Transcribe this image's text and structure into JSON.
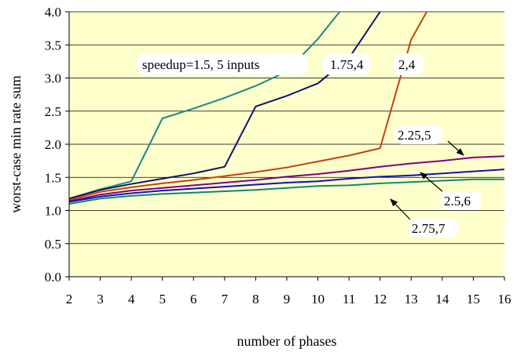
{
  "chart_data": {
    "type": "line",
    "title": "",
    "xlabel": "number of phases",
    "ylabel": "worst-case min rate sum",
    "xlim": [
      2,
      16
    ],
    "ylim": [
      0,
      4
    ],
    "x_ticks": [
      "2",
      "3",
      "4",
      "5",
      "6",
      "7",
      "8",
      "9",
      "10",
      "11",
      "12",
      "13",
      "14",
      "15",
      "16"
    ],
    "y_ticks": [
      "0.0",
      "0.5",
      "1.0",
      "1.5",
      "2.0",
      "2.5",
      "3.0",
      "3.5",
      "4.0"
    ],
    "grid": "horizontal",
    "plot_background": "#FFFFCC",
    "series": [
      {
        "name": "speedup=1.5, 5 inputs",
        "color": "#1A8A80",
        "points": [
          [
            2,
            1.18
          ],
          [
            3,
            1.32
          ],
          [
            4,
            1.44
          ],
          [
            5,
            2.39
          ],
          [
            6,
            2.54
          ],
          [
            7,
            2.7
          ],
          [
            8,
            2.88
          ],
          [
            9,
            3.1
          ],
          [
            10,
            3.59
          ],
          [
            10.7,
            4.0
          ]
        ]
      },
      {
        "name": "1.75,4",
        "color": "#101070",
        "points": [
          [
            2,
            1.18
          ],
          [
            3,
            1.31
          ],
          [
            4,
            1.4
          ],
          [
            5,
            1.48
          ],
          [
            6,
            1.56
          ],
          [
            7,
            1.66
          ],
          [
            8,
            2.57
          ],
          [
            9,
            2.73
          ],
          [
            10,
            2.92
          ],
          [
            11,
            3.3
          ],
          [
            12,
            4.0
          ]
        ]
      },
      {
        "name": "2,4",
        "color": "#C84010",
        "points": [
          [
            2,
            1.16
          ],
          [
            3,
            1.28
          ],
          [
            4,
            1.35
          ],
          [
            5,
            1.41
          ],
          [
            6,
            1.46
          ],
          [
            7,
            1.52
          ],
          [
            8,
            1.58
          ],
          [
            9,
            1.65
          ],
          [
            10,
            1.74
          ],
          [
            11,
            1.83
          ],
          [
            12,
            1.94
          ],
          [
            13,
            3.58
          ],
          [
            13.5,
            4.0
          ]
        ]
      },
      {
        "name": "2.25,5",
        "color": "#800080",
        "points": [
          [
            2,
            1.14
          ],
          [
            3,
            1.24
          ],
          [
            4,
            1.3
          ],
          [
            5,
            1.34
          ],
          [
            6,
            1.38
          ],
          [
            7,
            1.42
          ],
          [
            8,
            1.46
          ],
          [
            9,
            1.51
          ],
          [
            10,
            1.55
          ],
          [
            11,
            1.6
          ],
          [
            12,
            1.66
          ],
          [
            13,
            1.71
          ],
          [
            14,
            1.75
          ],
          [
            15,
            1.8
          ],
          [
            16,
            1.82
          ]
        ]
      },
      {
        "name": "2.5,6",
        "color": "#1010C0",
        "points": [
          [
            2,
            1.13
          ],
          [
            3,
            1.21
          ],
          [
            4,
            1.26
          ],
          [
            5,
            1.3
          ],
          [
            6,
            1.33
          ],
          [
            7,
            1.36
          ],
          [
            8,
            1.39
          ],
          [
            9,
            1.42
          ],
          [
            10,
            1.44
          ],
          [
            11,
            1.48
          ],
          [
            12,
            1.51
          ],
          [
            13,
            1.53
          ],
          [
            14,
            1.56
          ],
          [
            15,
            1.59
          ],
          [
            16,
            1.62
          ]
        ]
      },
      {
        "name": "2.75,7",
        "color": "#0E8A70",
        "points": [
          [
            2,
            1.1
          ],
          [
            3,
            1.18
          ],
          [
            4,
            1.22
          ],
          [
            5,
            1.25
          ],
          [
            6,
            1.27
          ],
          [
            7,
            1.29
          ],
          [
            8,
            1.31
          ],
          [
            9,
            1.34
          ],
          [
            10,
            1.37
          ],
          [
            11,
            1.38
          ],
          [
            12,
            1.41
          ],
          [
            13,
            1.43
          ],
          [
            14,
            1.45
          ],
          [
            15,
            1.47
          ],
          [
            16,
            1.47
          ]
        ]
      }
    ],
    "annotations": [
      {
        "text": "speedup=1.5, 5 inputs",
        "arrow": false
      },
      {
        "text": "1.75,4",
        "arrow": false
      },
      {
        "text": "2,4",
        "arrow": false
      },
      {
        "text": "2.25,5",
        "arrow": true,
        "points_to": [
          15,
          1.8
        ]
      },
      {
        "text": "2.5,6",
        "arrow": true,
        "points_to": [
          12.3,
          1.51
        ]
      },
      {
        "text": "2.75,7",
        "arrow": true,
        "points_to": [
          11.3,
          1.38
        ]
      }
    ]
  }
}
